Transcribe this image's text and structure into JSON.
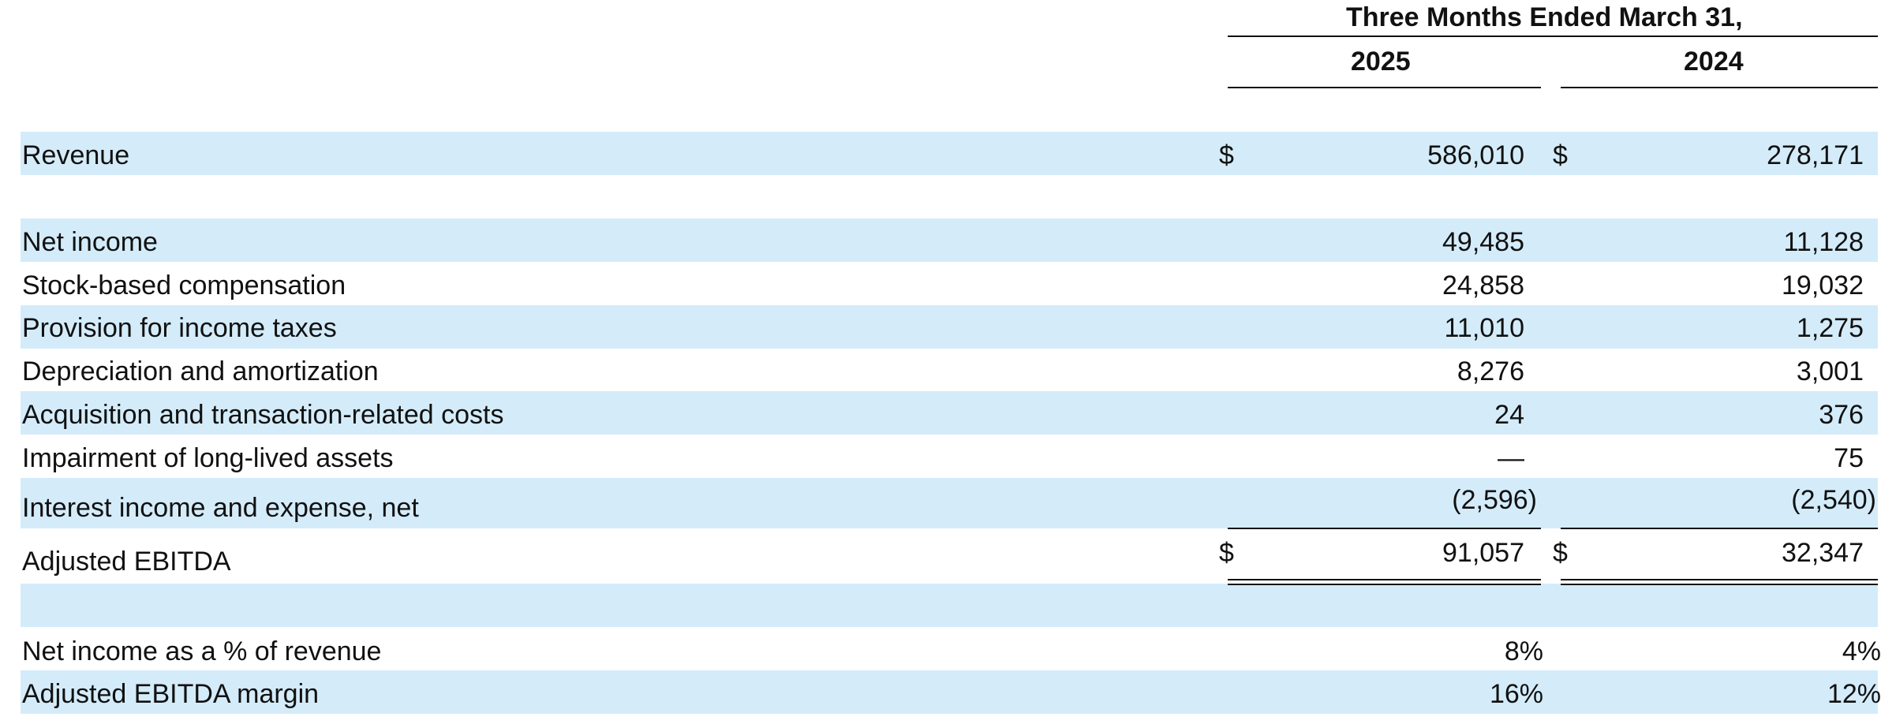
{
  "header": {
    "period": "Three Months Ended March 31,",
    "year_2025": "2025",
    "year_2024": "2024"
  },
  "currency_symbol": "$",
  "rows": {
    "revenue": {
      "label": "Revenue",
      "v2025": "586,010",
      "v2024": "278,171"
    },
    "net_income": {
      "label": "Net income",
      "v2025": "49,485",
      "v2024": "11,128"
    },
    "sbc": {
      "label": "Stock-based compensation",
      "v2025": "24,858",
      "v2024": "19,032"
    },
    "taxes": {
      "label": "Provision for income taxes",
      "v2025": "11,010",
      "v2024": "1,275"
    },
    "dna": {
      "label": "Depreciation and amortization",
      "v2025": "8,276",
      "v2024": "3,001"
    },
    "acq": {
      "label": "Acquisition and transaction-related costs",
      "v2025": "24",
      "v2024": "376"
    },
    "impairment": {
      "label": "Impairment of long-lived assets",
      "v2025": "—",
      "v2024": "75"
    },
    "interest": {
      "label": "Interest income and expense, net",
      "v2025": "(2,596)",
      "v2024": "(2,540)"
    },
    "ebitda": {
      "label": "Adjusted EBITDA",
      "v2025": "91,057",
      "v2024": "32,347"
    },
    "ni_pct": {
      "label": "Net income as a % of revenue",
      "v2025": "8%",
      "v2024": "4%"
    },
    "margin": {
      "label": "Adjusted EBITDA margin",
      "v2025": "16%",
      "v2024": "12%"
    }
  },
  "colors": {
    "band": "#d4ecfa",
    "text": "#111111"
  }
}
